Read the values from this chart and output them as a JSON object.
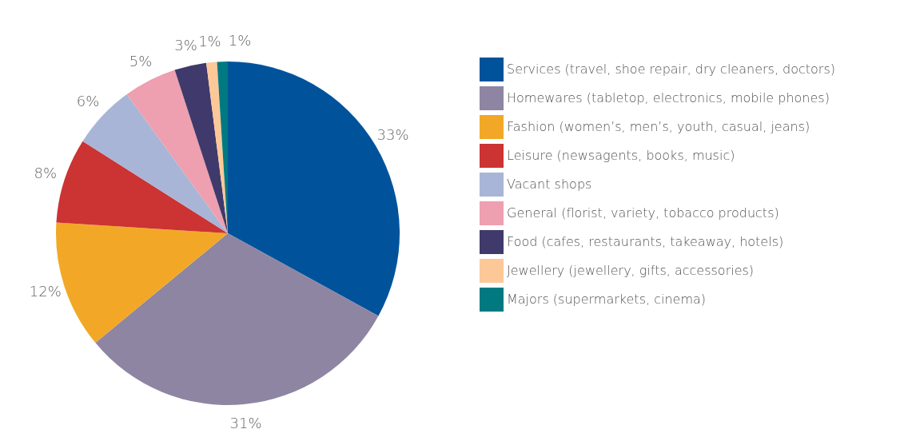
{
  "chart_data": {
    "type": "pie",
    "categories": [
      "Services (travel, shoe repair, dry cleaners, doctors)",
      "Homewares (tabletop, electronics, mobile phones)",
      "Fashion (women’s, men’s, youth, casual, jeans)",
      "Leisure (newsagents, books, music)",
      "Vacant shops",
      "General (florist, variety, tobacco products)",
      "Food (cafes, restaurants, takeaway, hotels)",
      "Jewellery (jewellery, gifts, accessories)",
      "Majors (supermarkets, cinema)"
    ],
    "values": [
      33,
      31,
      12,
      8,
      6,
      5,
      3,
      1,
      1
    ],
    "value_labels": [
      "33%",
      "31%",
      "12%",
      "8%",
      "6%",
      "5%",
      "3%",
      "1%",
      "1%"
    ],
    "colors": [
      "#00539b",
      "#8e85a3",
      "#f2a826",
      "#cc3333",
      "#a8b5d6",
      "#ee9fb0",
      "#3f3a6b",
      "#fdc898",
      "#007a80"
    ],
    "legend": "right"
  }
}
